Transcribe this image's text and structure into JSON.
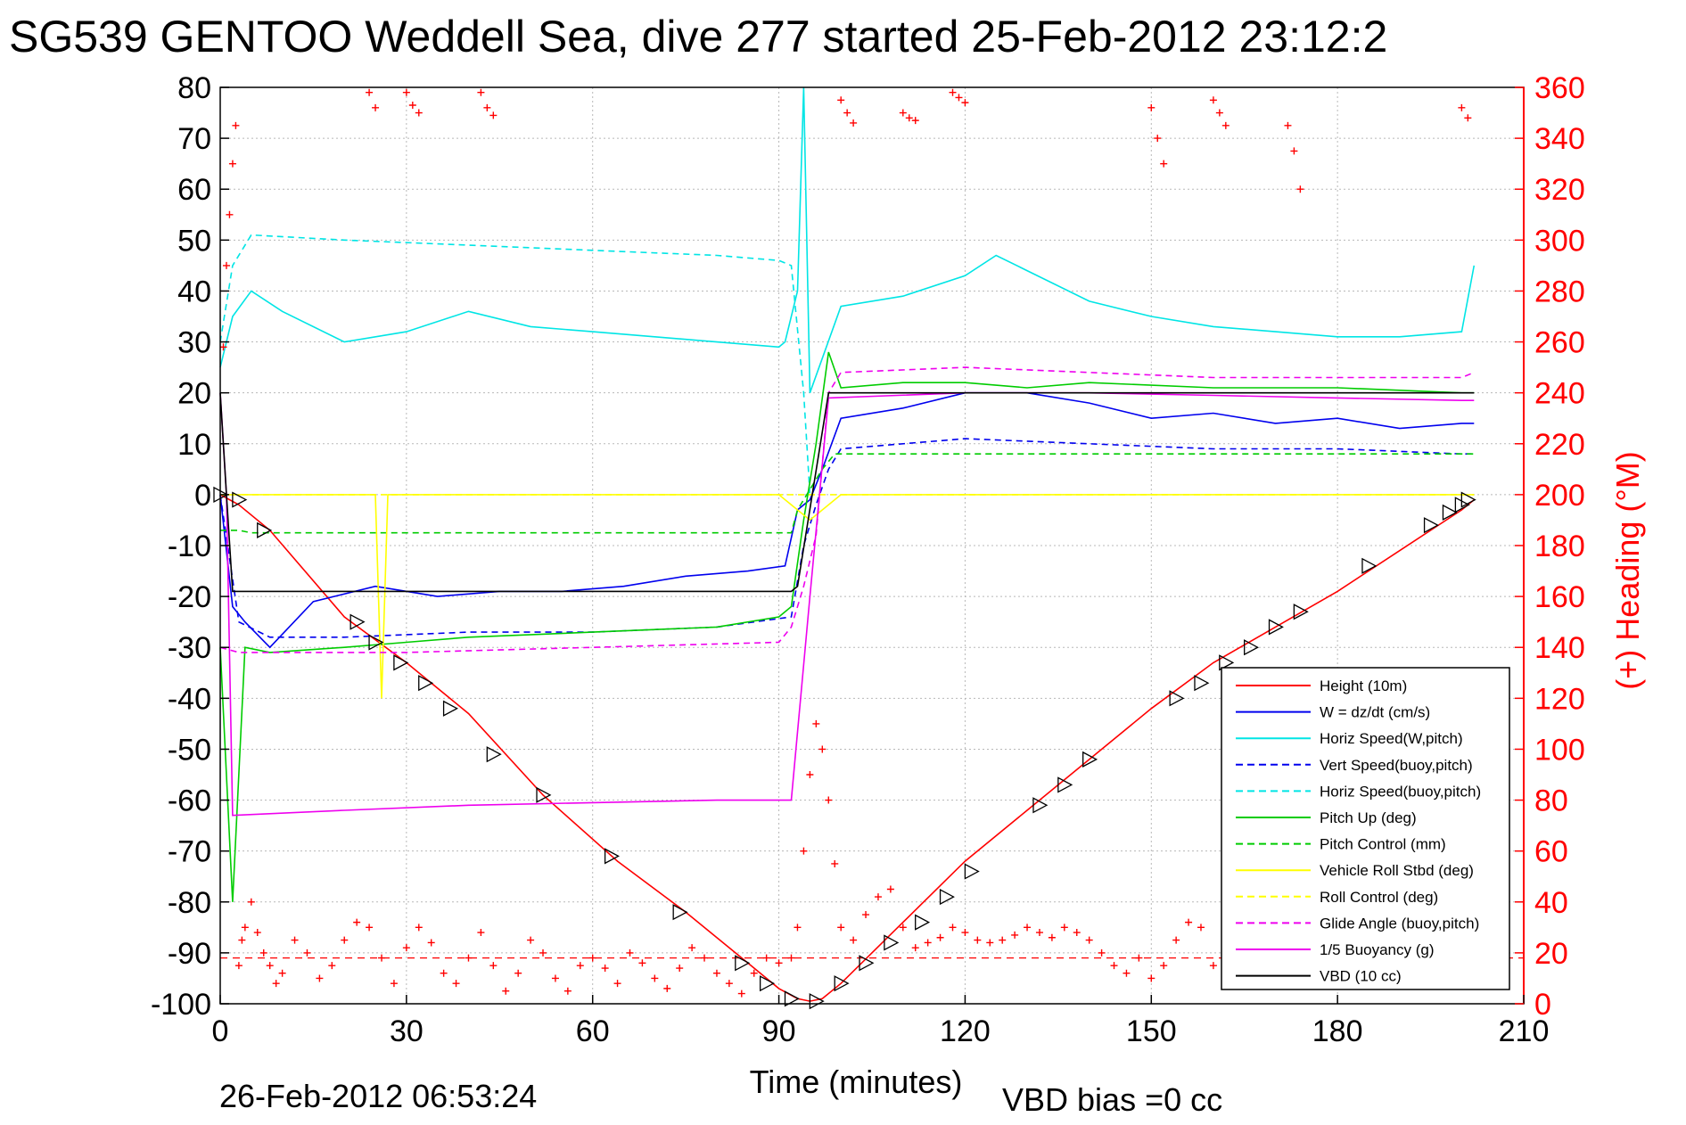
{
  "title": "SG539 GENTOO Weddell Sea, dive 277 started 25-Feb-2012 23:12:2",
  "footer": {
    "timestamp": "26-Feb-2012 06:53:24",
    "vbd_bias": "VBD bias =0 cc"
  },
  "chart_data": {
    "type": "line",
    "xlabel": "Time (minutes)",
    "ylabel": "",
    "y2label": "(+) Heading (°M)",
    "xlim": [
      0,
      210
    ],
    "ylim": [
      -100,
      80
    ],
    "y2lim": [
      0,
      360
    ],
    "x_ticks": [
      0,
      30,
      60,
      90,
      120,
      150,
      180,
      210
    ],
    "y_ticks": [
      80,
      70,
      60,
      50,
      40,
      30,
      20,
      10,
      0,
      -10,
      -20,
      -30,
      -40,
      -50,
      -60,
      -70,
      -80,
      -90,
      -100
    ],
    "y2_ticks": [
      360,
      340,
      320,
      300,
      280,
      260,
      240,
      220,
      200,
      180,
      160,
      140,
      120,
      100,
      80,
      60,
      40,
      20,
      0
    ],
    "grid": true,
    "legend_position": "bottom-right",
    "colors": {
      "height": "#ff0000",
      "w": "#0000ee",
      "horiz_speed_w": "#00e5e5",
      "vert_speed_buoy": "#0000ee",
      "horiz_speed_buoy": "#00e5e5",
      "pitch_up": "#00cc00",
      "pitch_control": "#00cc00",
      "vehicle_roll": "#ffff00",
      "roll_control": "#ffff00",
      "glide_angle": "#ee00ee",
      "buoyancy": "#ee00ee",
      "vbd": "#000000",
      "heading": "#ff0000"
    },
    "series": [
      {
        "key": "height",
        "name": "Height (10m)",
        "dash": false,
        "x": [
          0,
          3,
          8,
          20,
          30,
          40,
          52,
          64,
          75,
          85,
          90,
          93,
          95,
          97,
          100,
          110,
          120,
          130,
          140,
          150,
          160,
          170,
          180,
          190,
          200,
          202
        ],
        "y": [
          0,
          -2,
          -7,
          -24,
          -33,
          -43,
          -59,
          -72,
          -82,
          -92,
          -97,
          -99,
          -99.5,
          -99,
          -96,
          -84,
          -72,
          -62,
          -52,
          -42,
          -33,
          -26,
          -19,
          -11,
          -3,
          -1
        ]
      },
      {
        "key": "w",
        "name": "W = dz/dt (cm/s)",
        "dash": false,
        "x": [
          0,
          2,
          4,
          8,
          15,
          25,
          35,
          45,
          55,
          65,
          75,
          85,
          91,
          93,
          95,
          97,
          100,
          110,
          120,
          130,
          140,
          150,
          160,
          170,
          180,
          190,
          200,
          202
        ],
        "y": [
          0,
          -22,
          -25,
          -30,
          -21,
          -18,
          -20,
          -19,
          -19,
          -18,
          -16,
          -15,
          -14,
          -3,
          -1,
          5,
          15,
          17,
          20,
          20,
          18,
          15,
          16,
          14,
          15,
          13,
          14,
          14
        ]
      },
      {
        "key": "horiz_speed_w",
        "name": "Horiz Speed(W,pitch)",
        "dash": false,
        "x": [
          0,
          2,
          5,
          10,
          20,
          30,
          40,
          50,
          60,
          70,
          80,
          90,
          91,
          93,
          94,
          95,
          100,
          110,
          120,
          125,
          130,
          140,
          150,
          160,
          170,
          180,
          190,
          200,
          202
        ],
        "y": [
          25,
          35,
          40,
          36,
          30,
          32,
          36,
          33,
          32,
          31,
          30,
          29,
          30,
          40,
          80,
          20,
          37,
          39,
          43,
          47,
          44,
          38,
          35,
          33,
          32,
          31,
          31,
          32,
          45
        ]
      },
      {
        "key": "vert_speed_buoy",
        "name": "Vert Speed(buoy,pitch)",
        "dash": true,
        "x": [
          0,
          3,
          8,
          20,
          40,
          60,
          80,
          92,
          94,
          96,
          98,
          100,
          120,
          140,
          160,
          180,
          200,
          202
        ],
        "y": [
          0,
          -25,
          -28,
          -28,
          -27,
          -27,
          -26,
          -24,
          -10,
          -2,
          5,
          9,
          11,
          10,
          9,
          9,
          8,
          8
        ]
      },
      {
        "key": "horiz_speed_buoy",
        "name": "Horiz Speed(buoy,pitch)",
        "dash": true,
        "x": [
          0,
          2,
          5,
          20,
          40,
          60,
          80,
          90,
          92,
          94,
          95
        ],
        "y": [
          30,
          45,
          51,
          50,
          49,
          48,
          47,
          46,
          45,
          20,
          0
        ]
      },
      {
        "key": "pitch_up",
        "name": "Pitch Up (deg)",
        "dash": false,
        "x": [
          0,
          2,
          4,
          8,
          20,
          30,
          40,
          60,
          80,
          90,
          92,
          94,
          96,
          98,
          100,
          110,
          120,
          130,
          140,
          160,
          180,
          200,
          202
        ],
        "y": [
          -30,
          -80,
          -30,
          -31,
          -30,
          -29,
          -28,
          -27,
          -26,
          -24,
          -22,
          -5,
          10,
          28,
          21,
          22,
          22,
          21,
          22,
          21,
          21,
          20,
          20
        ]
      },
      {
        "key": "pitch_control",
        "name": "Pitch Control (mm)",
        "dash": true,
        "x": [
          0,
          3,
          5,
          92,
          93,
          97,
          99,
          202
        ],
        "y": [
          -7,
          -7,
          -7.5,
          -7.5,
          -3,
          5,
          8,
          8
        ]
      },
      {
        "key": "vehicle_roll",
        "name": "Vehicle Roll Stbd (deg)",
        "dash": false,
        "x": [
          0,
          5,
          25,
          26,
          27,
          30,
          50,
          70,
          90,
          95,
          100,
          120,
          140,
          160,
          180,
          200,
          202
        ],
        "y": [
          0,
          0,
          0,
          -40,
          0,
          0,
          0,
          0,
          0,
          -5,
          0,
          0,
          0,
          0,
          0,
          0,
          0
        ]
      },
      {
        "key": "roll_control",
        "name": "Roll Control (deg)",
        "dash": true,
        "x": [
          0,
          50,
          100,
          150,
          200,
          202
        ],
        "y": [
          0,
          0,
          0,
          0,
          0,
          0
        ]
      },
      {
        "key": "glide_angle",
        "name": "Glide Angle (buoy,pitch)",
        "dash": true,
        "x": [
          0,
          3,
          8,
          30,
          60,
          90,
          92,
          94,
          96,
          98,
          100,
          120,
          140,
          160,
          180,
          200,
          202
        ],
        "y": [
          -30,
          -31,
          -31,
          -31,
          -30,
          -29,
          -26,
          -18,
          -8,
          20,
          24,
          25,
          24,
          23,
          23,
          23,
          24
        ]
      },
      {
        "key": "buoyancy",
        "name": "1/5 Buoyancy (g)",
        "dash": false,
        "x": [
          0,
          1,
          2,
          20,
          40,
          60,
          80,
          92,
          95,
          98,
          120,
          140,
          160,
          180,
          200,
          202
        ],
        "y": [
          20,
          0,
          -63,
          -62,
          -61,
          -60.5,
          -60,
          -60,
          -20,
          19,
          20,
          20,
          19.5,
          19,
          18.5,
          18.5
        ]
      },
      {
        "key": "vbd",
        "name": "VBD (10 cc)",
        "dash": false,
        "x": [
          0,
          1,
          2,
          92,
          93,
          98,
          202
        ],
        "y": [
          20,
          0,
          -19,
          -19,
          -18,
          20,
          20
        ]
      }
    ],
    "heading_scatter": {
      "name": "(+) Heading",
      "x": [
        0.5,
        1,
        1.5,
        2,
        2.5,
        3,
        3.5,
        4,
        5,
        6,
        7,
        8,
        9,
        10,
        12,
        14,
        16,
        18,
        20,
        22,
        24,
        26,
        28,
        30,
        32,
        34,
        36,
        38,
        40,
        42,
        44,
        46,
        48,
        50,
        52,
        54,
        56,
        58,
        60,
        62,
        64,
        66,
        68,
        70,
        72,
        74,
        76,
        78,
        80,
        82,
        84,
        86,
        88,
        90,
        92,
        93,
        94,
        95,
        96,
        97,
        98,
        99,
        100,
        102,
        104,
        106,
        108,
        110,
        112,
        114,
        116,
        118,
        120,
        122,
        124,
        126,
        128,
        130,
        132,
        134,
        136,
        138,
        140,
        142,
        144,
        146,
        148,
        150,
        152,
        154,
        156,
        158,
        160,
        162,
        164,
        166,
        168,
        170,
        172,
        174,
        176,
        178,
        180,
        182,
        184,
        186,
        188,
        190,
        192,
        194,
        196,
        198,
        200,
        202
      ],
      "y": [
        258,
        290,
        310,
        330,
        345,
        15,
        25,
        30,
        40,
        28,
        20,
        15,
        8,
        12,
        25,
        20,
        10,
        15,
        25,
        32,
        30,
        18,
        8,
        22,
        30,
        24,
        12,
        8,
        18,
        28,
        15,
        5,
        12,
        25,
        20,
        10,
        5,
        15,
        18,
        14,
        8,
        20,
        16,
        10,
        6,
        14,
        22,
        18,
        12,
        8,
        4,
        12,
        18,
        16,
        18,
        30,
        60,
        90,
        110,
        100,
        80,
        55,
        30,
        25,
        35,
        42,
        45,
        30,
        22,
        24,
        26,
        30,
        28,
        25,
        24,
        25,
        27,
        30,
        28,
        26,
        30,
        28,
        25,
        20,
        15,
        12,
        18,
        10,
        15,
        25,
        32,
        30,
        15,
        12,
        20,
        25,
        20,
        15,
        12,
        10,
        14,
        18,
        12,
        14,
        8,
        12,
        20,
        15,
        10,
        12,
        14,
        10,
        8,
        12
      ],
      "cluster_top_x": [
        24,
        25,
        30,
        31,
        32,
        42,
        43,
        44,
        100,
        101,
        102,
        110,
        111,
        112,
        118,
        119,
        120,
        150,
        151,
        152,
        160,
        161,
        162,
        172,
        173,
        174,
        200,
        201
      ],
      "cluster_top_y": [
        358,
        352,
        358,
        353,
        350,
        358,
        352,
        349,
        355,
        350,
        346,
        350,
        348,
        347,
        358,
        356,
        354,
        352,
        340,
        330,
        355,
        350,
        345,
        345,
        335,
        320,
        352,
        348
      ],
      "reference_line": 18
    },
    "markers": {
      "x": [
        0,
        3,
        7,
        22,
        25,
        29,
        33,
        37,
        44,
        52,
        63,
        74,
        84,
        88,
        92,
        96,
        100,
        104,
        108,
        113,
        117,
        121,
        132,
        136,
        140,
        154,
        158,
        162,
        166,
        170,
        174,
        185,
        195,
        198,
        200,
        201
      ],
      "y": [
        0,
        -1,
        -7,
        -25,
        -29,
        -33,
        -37,
        -42,
        -51,
        -59,
        -71,
        -82,
        -92,
        -96,
        -99,
        -99.5,
        -96,
        -92,
        -88,
        -84,
        -79,
        -74,
        -61,
        -57,
        -52,
        -40,
        -37,
        -33,
        -30,
        -26,
        -23,
        -14,
        -6,
        -3.5,
        -2,
        -1
      ]
    },
    "legend": [
      {
        "label": "Height (10m)",
        "color": "#ff0000",
        "dash": false
      },
      {
        "label": "W = dz/dt (cm/s)",
        "color": "#0000ee",
        "dash": false
      },
      {
        "label": "Horiz Speed(W,pitch)",
        "color": "#00e5e5",
        "dash": false
      },
      {
        "label": "Vert Speed(buoy,pitch)",
        "color": "#0000ee",
        "dash": true
      },
      {
        "label": "Horiz Speed(buoy,pitch)",
        "color": "#00e5e5",
        "dash": true
      },
      {
        "label": "Pitch Up (deg)",
        "color": "#00cc00",
        "dash": false
      },
      {
        "label": "Pitch Control (mm)",
        "color": "#00cc00",
        "dash": true
      },
      {
        "label": "Vehicle Roll Stbd (deg)",
        "color": "#ffff00",
        "dash": false
      },
      {
        "label": "Roll Control (deg)",
        "color": "#ffff00",
        "dash": true
      },
      {
        "label": "Glide Angle (buoy,pitch)",
        "color": "#ee00ee",
        "dash": true
      },
      {
        "label": "1/5 Buoyancy (g)",
        "color": "#ee00ee",
        "dash": false
      },
      {
        "label": "VBD (10 cc)",
        "color": "#000000",
        "dash": false
      }
    ]
  }
}
